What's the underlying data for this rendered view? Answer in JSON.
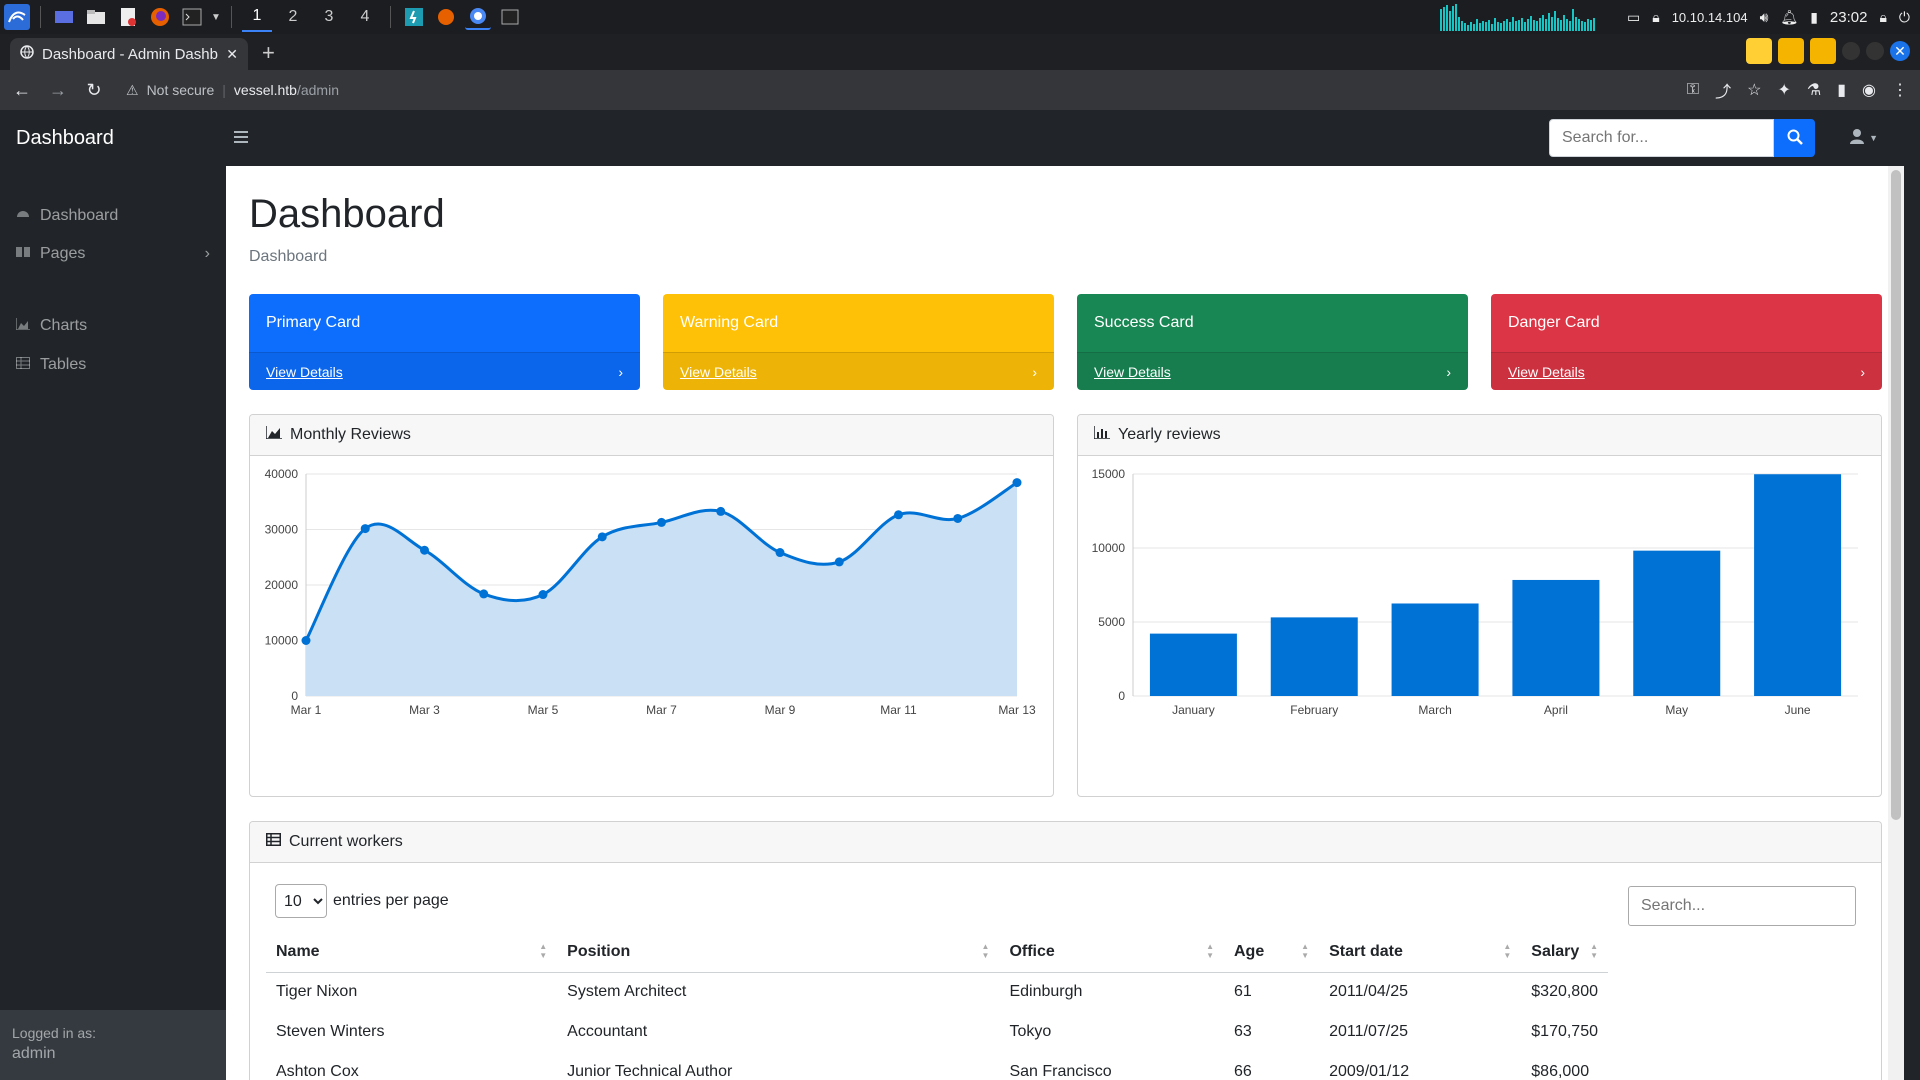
{
  "os": {
    "workspaces": [
      "1",
      "2",
      "3",
      "4"
    ],
    "ip": "10.10.14.104",
    "clock": "23:02"
  },
  "browser": {
    "tab_title": "Dashboard - Admin Dashb",
    "security_label": "Not secure",
    "url_host": "vessel.htb",
    "url_path": "/admin"
  },
  "topnav": {
    "brand": "Dashboard",
    "search_placeholder": "Search for..."
  },
  "sidebar": {
    "items": [
      {
        "label": "Dashboard",
        "icon": "tachometer-icon"
      },
      {
        "label": "Pages",
        "icon": "book-open-icon"
      },
      {
        "label": "Charts",
        "icon": "chart-area-icon"
      },
      {
        "label": "Tables",
        "icon": "table-icon"
      }
    ],
    "footer_label": "Logged in as:",
    "footer_user": "admin"
  },
  "main": {
    "title": "Dashboard",
    "breadcrumb": "Dashboard",
    "cards": [
      {
        "title": "Primary Card",
        "link": "View Details",
        "color": "#0d6efd"
      },
      {
        "title": "Warning Card",
        "link": "View Details",
        "color": "#ffc107"
      },
      {
        "title": "Success Card",
        "link": "View Details",
        "color": "#198754"
      },
      {
        "title": "Danger Card",
        "link": "View Details",
        "color": "#dc3545"
      }
    ]
  },
  "chart_data": [
    {
      "type": "area",
      "title": "Monthly Reviews",
      "x": [
        "Mar 1",
        "Mar 2",
        "Mar 3",
        "Mar 4",
        "Mar 5",
        "Mar 6",
        "Mar 7",
        "Mar 8",
        "Mar 9",
        "Mar 10",
        "Mar 11",
        "Mar 12",
        "Mar 13"
      ],
      "x_tick_labels": [
        "Mar 1",
        "Mar 3",
        "Mar 5",
        "Mar 7",
        "Mar 9",
        "Mar 11",
        "Mar 13"
      ],
      "values": [
        10000,
        30162,
        26263,
        18394,
        18287,
        28682,
        31274,
        33259,
        25849,
        24159,
        32651,
        31984,
        38451
      ],
      "ylim": [
        0,
        40000
      ],
      "yticks": [
        0,
        10000,
        20000,
        30000,
        40000
      ],
      "line_color": "#0072d6",
      "fill_color": "#c9e0f5",
      "grid": true
    },
    {
      "type": "bar",
      "title": "Yearly reviews",
      "categories": [
        "January",
        "February",
        "March",
        "April",
        "May",
        "June"
      ],
      "values": [
        4215,
        5312,
        6251,
        7841,
        9821,
        14984
      ],
      "ylim": [
        0,
        15000
      ],
      "yticks": [
        0,
        5000,
        10000,
        15000
      ],
      "bar_color": "#0072d6",
      "grid": true
    }
  ],
  "table": {
    "title": "Current workers",
    "page_size": "10",
    "page_size_suffix": "entries per page",
    "search_placeholder": "Search...",
    "columns": [
      "Name",
      "Position",
      "Office",
      "Age",
      "Start date",
      "Salary"
    ],
    "rows": [
      [
        "Tiger Nixon",
        "System Architect",
        "Edinburgh",
        "61",
        "2011/04/25",
        "$320,800"
      ],
      [
        "Steven Winters",
        "Accountant",
        "Tokyo",
        "63",
        "2011/07/25",
        "$170,750"
      ],
      [
        "Ashton Cox",
        "Junior Technical Author",
        "San Francisco",
        "66",
        "2009/01/12",
        "$86,000"
      ]
    ]
  }
}
